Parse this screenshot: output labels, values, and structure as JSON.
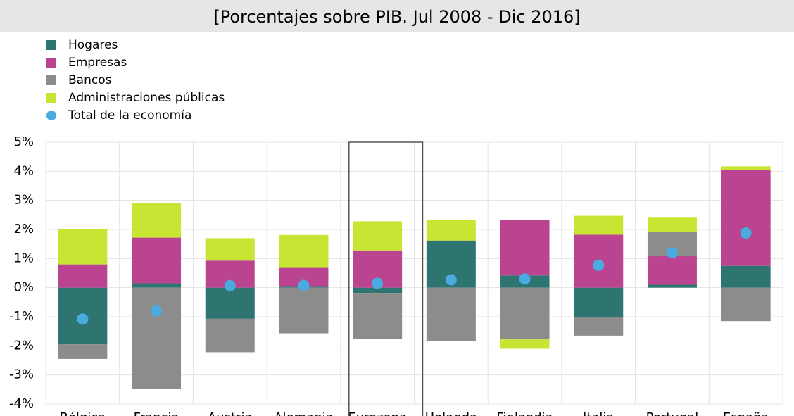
{
  "chart_data": {
    "type": "stacked-bar",
    "subtitle": "[Porcentajes sobre PIB. Jul 2008 - Dic 2016]",
    "categories": [
      "Bélgica",
      "Francia",
      "Austria",
      "Alemania",
      "Eurozona",
      "Holanda",
      "Finlandia",
      "Italia",
      "Portugal",
      "España"
    ],
    "series": [
      {
        "name": "Hogares",
        "color": "#2e7572",
        "values": [
          -1.95,
          0.15,
          -1.07,
          0.03,
          -0.18,
          1.62,
          0.42,
          -1.0,
          0.1,
          0.75
        ]
      },
      {
        "name": "Empresas",
        "color": "#bb4490",
        "values": [
          0.8,
          1.57,
          0.93,
          0.65,
          1.28,
          0,
          1.9,
          1.82,
          0.98,
          3.3
        ]
      },
      {
        "name": "Bancos",
        "color": "#8c8c8c",
        "values": [
          -0.5,
          -3.47,
          -1.15,
          -1.57,
          -1.58,
          -1.83,
          -1.78,
          -0.65,
          0.83,
          -1.15
        ]
      },
      {
        "name": "Administraciones públicas",
        "color": "#c9e534",
        "values": [
          1.2,
          1.2,
          0.77,
          1.13,
          1.0,
          0.7,
          -0.32,
          0.65,
          0.52,
          0.12
        ]
      }
    ],
    "total": {
      "name": "Total de la economía",
      "color": "#4aabe0",
      "values": [
        -1.08,
        -0.8,
        0.07,
        0.08,
        0.15,
        0.27,
        0.3,
        0.77,
        1.2,
        1.88
      ]
    },
    "ylim": [
      -4,
      5
    ],
    "yticks": [
      {
        "value": -4,
        "label": "-4%"
      },
      {
        "value": -3,
        "label": "-3%"
      },
      {
        "value": -2,
        "label": "-2%"
      },
      {
        "value": -1,
        "label": "-1%"
      },
      {
        "value": 0,
        "label": "0%"
      },
      {
        "value": 1,
        "label": "1%"
      },
      {
        "value": 2,
        "label": "2%"
      },
      {
        "value": 3,
        "label": "3%"
      },
      {
        "value": 4,
        "label": "4%"
      },
      {
        "value": 5,
        "label": "5%"
      }
    ],
    "grid": true
  }
}
